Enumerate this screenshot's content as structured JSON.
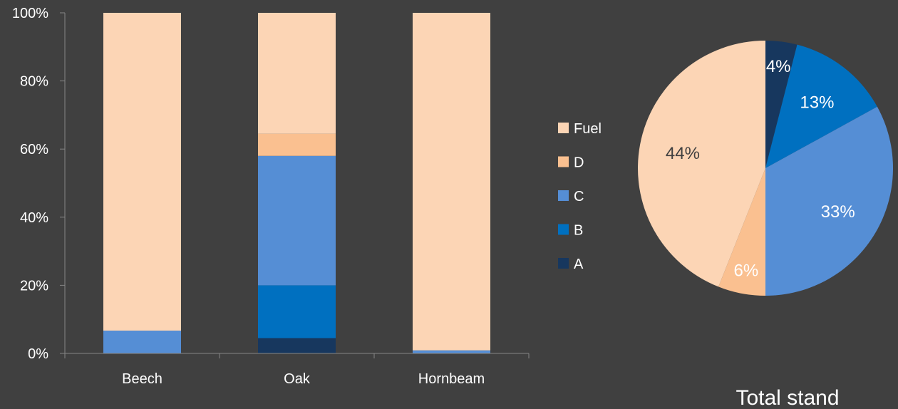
{
  "colors": {
    "background": "#404040",
    "axis": "#868686",
    "text": "#ffffff",
    "dark_text": "#404040",
    "A": "#17375e",
    "B": "#0070c0",
    "C": "#558ed5",
    "D": "#fac090",
    "Fuel": "#fcd5b5"
  },
  "chart_data": [
    {
      "type": "bar",
      "stacked": true,
      "categories": [
        "Beech",
        "Oak",
        "Hornbeam"
      ],
      "series": [
        {
          "name": "A",
          "color_key": "A",
          "values": [
            0,
            4.5,
            0
          ]
        },
        {
          "name": "B",
          "color_key": "B",
          "values": [
            0,
            15.5,
            0
          ]
        },
        {
          "name": "C",
          "color_key": "C",
          "values": [
            6.7,
            38,
            0.9
          ]
        },
        {
          "name": "D",
          "color_key": "D",
          "values": [
            0,
            6.5,
            0
          ]
        },
        {
          "name": "Fuel",
          "color_key": "Fuel",
          "values": [
            93.3,
            35.5,
            99.1
          ]
        }
      ],
      "yticks": [
        "0%",
        "20%",
        "40%",
        "60%",
        "80%",
        "100%"
      ],
      "ylim": [
        0,
        100
      ],
      "legend": {
        "position": "right",
        "entries": [
          "Fuel",
          "D",
          "C",
          "B",
          "A"
        ]
      }
    },
    {
      "type": "pie",
      "title": "Total stand",
      "slices": [
        {
          "label": "A",
          "value": 4,
          "text": "4%",
          "color_key": "A"
        },
        {
          "label": "B",
          "value": 13,
          "text": "13%",
          "color_key": "B"
        },
        {
          "label": "C",
          "value": 33,
          "text": "33%",
          "color_key": "C"
        },
        {
          "label": "D",
          "value": 6,
          "text": "6%",
          "color_key": "D"
        },
        {
          "label": "Fuel",
          "value": 44,
          "text": "44%",
          "color_key": "Fuel"
        }
      ]
    }
  ]
}
